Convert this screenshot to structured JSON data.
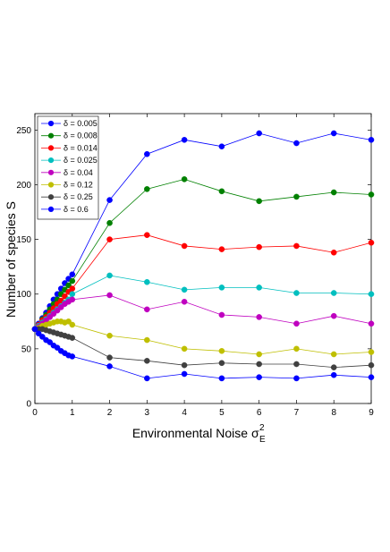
{
  "chart_data": {
    "type": "line",
    "xlabel": "Environmental Noise",
    "xlabel_symbol": "σ",
    "xlabel_sup": "2",
    "xlabel_sub": "E",
    "ylabel": "Number of species S",
    "xlim": [
      0,
      9
    ],
    "ylim": [
      0,
      265
    ],
    "xticks": [
      "0",
      "1",
      "2",
      "3",
      "4",
      "5",
      "6",
      "7",
      "8",
      "9"
    ],
    "yticks": [
      "0",
      "50",
      "100",
      "150",
      "200",
      "250"
    ],
    "grid": false,
    "legend_position": "top-left",
    "x": [
      0,
      0.1,
      0.2,
      0.3,
      0.4,
      0.5,
      0.6,
      0.7,
      0.8,
      0.9,
      1,
      2,
      3,
      4,
      5,
      6,
      7,
      8,
      9
    ],
    "series": [
      {
        "name": "δ = 0.005",
        "color": "#0000ff",
        "values": [
          68,
          73,
          78,
          83,
          89,
          95,
          100,
          105,
          110,
          114,
          118,
          186,
          228,
          241,
          235,
          247,
          238,
          247,
          241
        ]
      },
      {
        "name": "δ = 0.008",
        "color": "#008000",
        "values": [
          68,
          72,
          77,
          81,
          86,
          91,
          95,
          100,
          104,
          108,
          112,
          165,
          196,
          205,
          194,
          185,
          189,
          193,
          191
        ]
      },
      {
        "name": "δ = 0.014",
        "color": "#ff0000",
        "values": [
          68,
          72,
          76,
          79,
          83,
          87,
          91,
          94,
          98,
          102,
          105,
          150,
          154,
          144,
          141,
          143,
          144,
          138,
          147
        ]
      },
      {
        "name": "δ = 0.025",
        "color": "#00bfbf",
        "values": [
          68,
          71,
          74,
          77,
          80,
          83,
          86,
          89,
          92,
          95,
          100,
          117,
          111,
          104,
          106,
          106,
          101,
          101,
          100
        ]
      },
      {
        "name": "δ = 0.04",
        "color": "#bf00bf",
        "values": [
          68,
          70,
          73,
          76,
          79,
          82,
          85,
          88,
          91,
          93,
          95,
          99,
          86,
          93,
          81,
          79,
          73,
          80,
          73
        ]
      },
      {
        "name": "δ = 0.12",
        "color": "#bfbf00",
        "values": [
          68,
          69,
          71,
          72,
          73,
          74,
          75,
          75,
          74,
          75,
          72,
          62,
          58,
          50,
          48,
          45,
          50,
          45,
          47
        ]
      },
      {
        "name": "δ = 0.25",
        "color": "#404040",
        "values": [
          68,
          68,
          68,
          67,
          66,
          65,
          64,
          63,
          62,
          61,
          60,
          42,
          39,
          35,
          37,
          36,
          36,
          33,
          35
        ]
      },
      {
        "name": "δ = 0.6",
        "color": "#0000ff",
        "values": [
          68,
          64,
          61,
          58,
          56,
          53,
          51,
          48,
          46,
          44,
          43,
          34,
          23,
          27,
          23,
          24,
          23,
          26,
          24
        ]
      }
    ]
  }
}
